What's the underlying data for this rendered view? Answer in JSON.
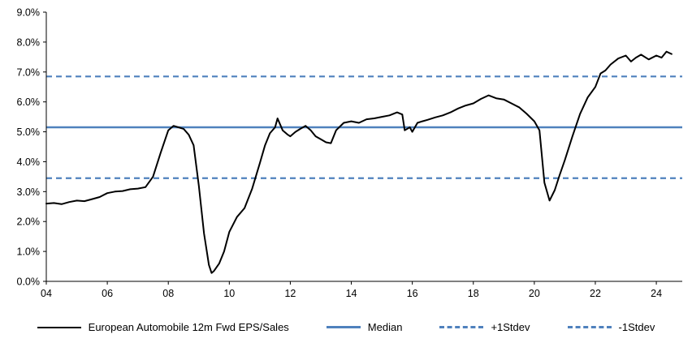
{
  "chart_data": {
    "type": "line",
    "title": "",
    "xlabel": "",
    "ylabel": "",
    "ylim": [
      0,
      9
    ],
    "xlim": [
      2004,
      2024.85
    ],
    "grid": false,
    "legend_position": "bottom",
    "y_ticks": [
      0,
      1,
      2,
      3,
      4,
      5,
      6,
      7,
      8,
      9
    ],
    "y_tick_labels": [
      "0.0%",
      "1.0%",
      "2.0%",
      "3.0%",
      "4.0%",
      "5.0%",
      "6.0%",
      "7.0%",
      "8.0%",
      "9.0%"
    ],
    "x_ticks": [
      2004,
      2006,
      2008,
      2010,
      2012,
      2014,
      2016,
      2018,
      2020,
      2022,
      2024
    ],
    "x_tick_labels": [
      "04",
      "06",
      "08",
      "10",
      "12",
      "14",
      "16",
      "18",
      "20",
      "22",
      "24"
    ],
    "series": [
      {
        "name": "European Automobile 12m Fwd EPS/Sales",
        "color": "#000000",
        "x": [
          2004.0,
          2004.25,
          2004.5,
          2004.75,
          2005.0,
          2005.25,
          2005.5,
          2005.75,
          2006.0,
          2006.25,
          2006.5,
          2006.75,
          2007.0,
          2007.25,
          2007.5,
          2007.75,
          2008.0,
          2008.17,
          2008.33,
          2008.5,
          2008.67,
          2008.83,
          2009.0,
          2009.17,
          2009.33,
          2009.42,
          2009.5,
          2009.67,
          2009.83,
          2010.0,
          2010.25,
          2010.5,
          2010.75,
          2011.0,
          2011.17,
          2011.33,
          2011.5,
          2011.58,
          2011.75,
          2011.92,
          2012.0,
          2012.17,
          2012.33,
          2012.5,
          2012.67,
          2012.83,
          2013.0,
          2013.17,
          2013.33,
          2013.5,
          2013.75,
          2014.0,
          2014.25,
          2014.5,
          2014.75,
          2015.0,
          2015.25,
          2015.5,
          2015.67,
          2015.75,
          2015.92,
          2016.0,
          2016.17,
          2016.33,
          2016.5,
          2016.75,
          2017.0,
          2017.25,
          2017.5,
          2017.75,
          2018.0,
          2018.25,
          2018.5,
          2018.75,
          2019.0,
          2019.25,
          2019.5,
          2019.75,
          2020.0,
          2020.17,
          2020.33,
          2020.5,
          2020.67,
          2020.83,
          2021.0,
          2021.25,
          2021.5,
          2021.75,
          2022.0,
          2022.17,
          2022.33,
          2022.5,
          2022.75,
          2023.0,
          2023.17,
          2023.33,
          2023.5,
          2023.75,
          2024.0,
          2024.17,
          2024.33,
          2024.5
        ],
        "y": [
          2.6,
          2.62,
          2.58,
          2.65,
          2.7,
          2.68,
          2.75,
          2.82,
          2.95,
          3.0,
          3.02,
          3.08,
          3.1,
          3.15,
          3.5,
          4.3,
          5.05,
          5.2,
          5.15,
          5.1,
          4.9,
          4.55,
          3.2,
          1.6,
          0.55,
          0.28,
          0.35,
          0.6,
          1.0,
          1.65,
          2.15,
          2.45,
          3.1,
          3.95,
          4.55,
          4.95,
          5.15,
          5.45,
          5.05,
          4.9,
          4.85,
          5.0,
          5.1,
          5.2,
          5.05,
          4.85,
          4.75,
          4.65,
          4.62,
          5.05,
          5.3,
          5.35,
          5.3,
          5.42,
          5.45,
          5.5,
          5.55,
          5.65,
          5.58,
          5.05,
          5.15,
          5.0,
          5.3,
          5.35,
          5.4,
          5.48,
          5.55,
          5.65,
          5.78,
          5.88,
          5.95,
          6.1,
          6.22,
          6.12,
          6.08,
          5.95,
          5.82,
          5.6,
          5.35,
          5.05,
          3.3,
          2.7,
          3.05,
          3.55,
          4.05,
          4.85,
          5.6,
          6.15,
          6.5,
          6.95,
          7.05,
          7.25,
          7.45,
          7.55,
          7.35,
          7.48,
          7.58,
          7.42,
          7.55,
          7.48,
          7.68,
          7.6
        ]
      }
    ],
    "reference_lines": [
      {
        "name": "Median",
        "value": 5.15,
        "style": "solid",
        "color": "#4f81bd"
      },
      {
        "name": "+1Stdev",
        "value": 6.85,
        "style": "dashed",
        "color": "#4f81bd"
      },
      {
        "name": "-1Stdev",
        "value": 3.45,
        "style": "dashed",
        "color": "#4f81bd"
      }
    ]
  },
  "legend": {
    "items": [
      {
        "label": "European Automobile 12m Fwd EPS/Sales",
        "swatch": "black-solid"
      },
      {
        "label": "Median",
        "swatch": "blue-solid"
      },
      {
        "label": "+1Stdev",
        "swatch": "blue-dashed"
      },
      {
        "label": "-1Stdev",
        "swatch": "blue-dashed"
      }
    ]
  }
}
